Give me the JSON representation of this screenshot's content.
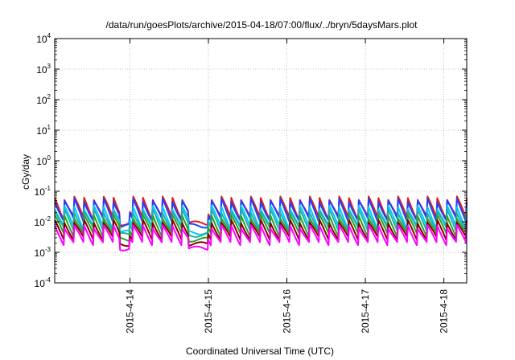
{
  "chart_data": {
    "type": "line",
    "title": "/data/run/goesPlots/archive/2015-04-18/07:00/flux/../bryn/5daysMars.plot",
    "xlabel": "Coordinated Universal Time (UTC)",
    "ylabel": "cGy/day",
    "y_scale": "log",
    "ylim": [
      0.0001,
      10000
    ],
    "y_ticks": [
      {
        "value": 0.0001,
        "base": "10",
        "exp": "-4"
      },
      {
        "value": 0.001,
        "base": "10",
        "exp": "-3"
      },
      {
        "value": 0.01,
        "base": "10",
        "exp": "-2"
      },
      {
        "value": 0.1,
        "base": "10",
        "exp": "-1"
      },
      {
        "value": 1,
        "base": "10",
        "exp": "0"
      },
      {
        "value": 10,
        "base": "10",
        "exp": "1"
      },
      {
        "value": 100,
        "base": "10",
        "exp": "2"
      },
      {
        "value": 1000,
        "base": "10",
        "exp": "3"
      },
      {
        "value": 10000,
        "base": "10",
        "exp": "4"
      }
    ],
    "x_range_days": [
      "2015-04-13 01:00",
      "2015-04-18 07:00"
    ],
    "x_ticks": [
      {
        "label": "2015-4-14",
        "day": 1
      },
      {
        "label": "2015-4-15",
        "day": 2
      },
      {
        "label": "2015-4-16",
        "day": 3
      },
      {
        "label": "2015-4-17",
        "day": 4
      },
      {
        "label": "2015-4-18",
        "day": 5
      }
    ],
    "grid": true,
    "legend": "none",
    "series": [
      {
        "color": "#e31a1c",
        "peak": 0.06,
        "trough": 0.012
      },
      {
        "color": "#1f3fff",
        "peak": 0.05,
        "trough": 0.01
      },
      {
        "color": "#00c8ff",
        "peak": 0.03,
        "trough": 0.006
      },
      {
        "color": "#20b2aa",
        "peak": 0.022,
        "trough": 0.005
      },
      {
        "color": "#2ca02c",
        "peak": 0.015,
        "trough": 0.0035
      },
      {
        "color": "#8b0000",
        "peak": 0.01,
        "trough": 0.0025
      },
      {
        "color": "#ff00ff",
        "peak": 0.007,
        "trough": 0.0018
      }
    ],
    "oscillation_period_hours": 3,
    "gaps": [
      [
        "2015-04-13 21:00",
        "2015-04-14 00:00"
      ],
      [
        "2015-04-14 18:00",
        "2015-04-15 00:00"
      ]
    ]
  }
}
